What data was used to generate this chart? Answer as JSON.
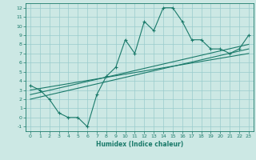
{
  "xlabel": "Humidex (Indice chaleur)",
  "ylabel": "",
  "bg_color": "#cce8e4",
  "grid_color": "#99cccc",
  "line_color": "#1a7a6a",
  "xlim": [
    -0.5,
    23.5
  ],
  "ylim": [
    -1.5,
    12.5
  ],
  "xticks": [
    0,
    1,
    2,
    3,
    4,
    5,
    6,
    7,
    8,
    9,
    10,
    11,
    12,
    13,
    14,
    15,
    16,
    17,
    18,
    19,
    20,
    21,
    22,
    23
  ],
  "yticks": [
    -1,
    0,
    1,
    2,
    3,
    4,
    5,
    6,
    7,
    8,
    9,
    10,
    11,
    12
  ],
  "line1_x": [
    0,
    1,
    2,
    3,
    4,
    5,
    6,
    7,
    8,
    9,
    10,
    11,
    12,
    13,
    14,
    15,
    16,
    17,
    18,
    19,
    20,
    21,
    22,
    23
  ],
  "line1_y": [
    3.5,
    3.0,
    2.0,
    0.5,
    0.0,
    0.0,
    -1.0,
    2.5,
    4.5,
    5.5,
    8.5,
    7.0,
    10.5,
    9.5,
    12.0,
    12.0,
    10.5,
    8.5,
    8.5,
    7.5,
    7.5,
    7.0,
    7.5,
    9.0
  ],
  "line2_x": [
    0,
    23
  ],
  "line2_y": [
    2.5,
    8.0
  ],
  "line3_x": [
    0,
    23
  ],
  "line3_y": [
    2.0,
    7.5
  ],
  "line4_x": [
    0,
    23
  ],
  "line4_y": [
    3.0,
    7.0
  ]
}
